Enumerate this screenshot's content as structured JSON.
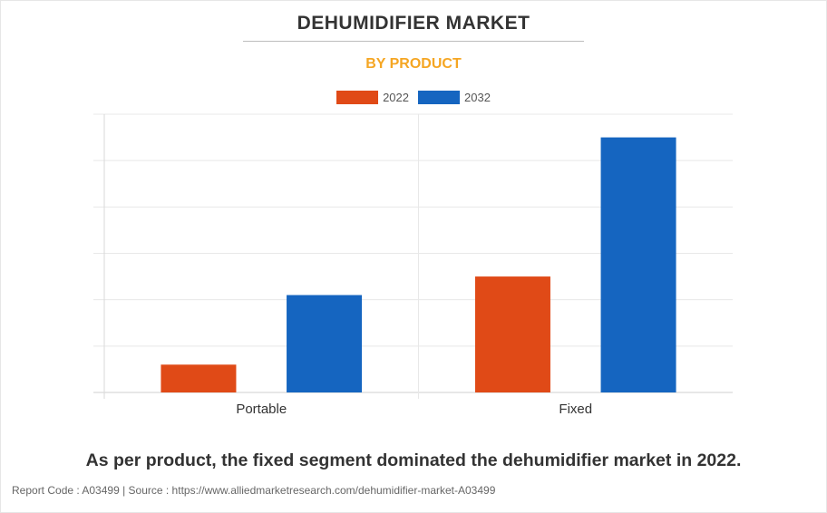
{
  "header": {
    "title": "DEHUMIDIFIER MARKET",
    "subtitle": "BY PRODUCT"
  },
  "chart_data": {
    "type": "bar",
    "title": "DEHUMIDIFIER MARKET",
    "subtitle": "BY PRODUCT",
    "categories": [
      "Portable",
      "Fixed"
    ],
    "series": [
      {
        "name": "2022",
        "color": "#e04a17",
        "values": [
          0.6,
          2.5
        ]
      },
      {
        "name": "2032",
        "color": "#1565c0",
        "values": [
          2.1,
          5.5
        ]
      }
    ],
    "ylim": [
      0,
      6
    ],
    "grid": true,
    "legend_position": "top-center",
    "xlabel": "",
    "ylabel": ""
  },
  "caption": "As per product, the fixed segment dominated the dehumidifier market in 2022.",
  "footer": "Report Code : A03499  |  Source : https://www.alliedmarketresearch.com/dehumidifier-market-A03499"
}
